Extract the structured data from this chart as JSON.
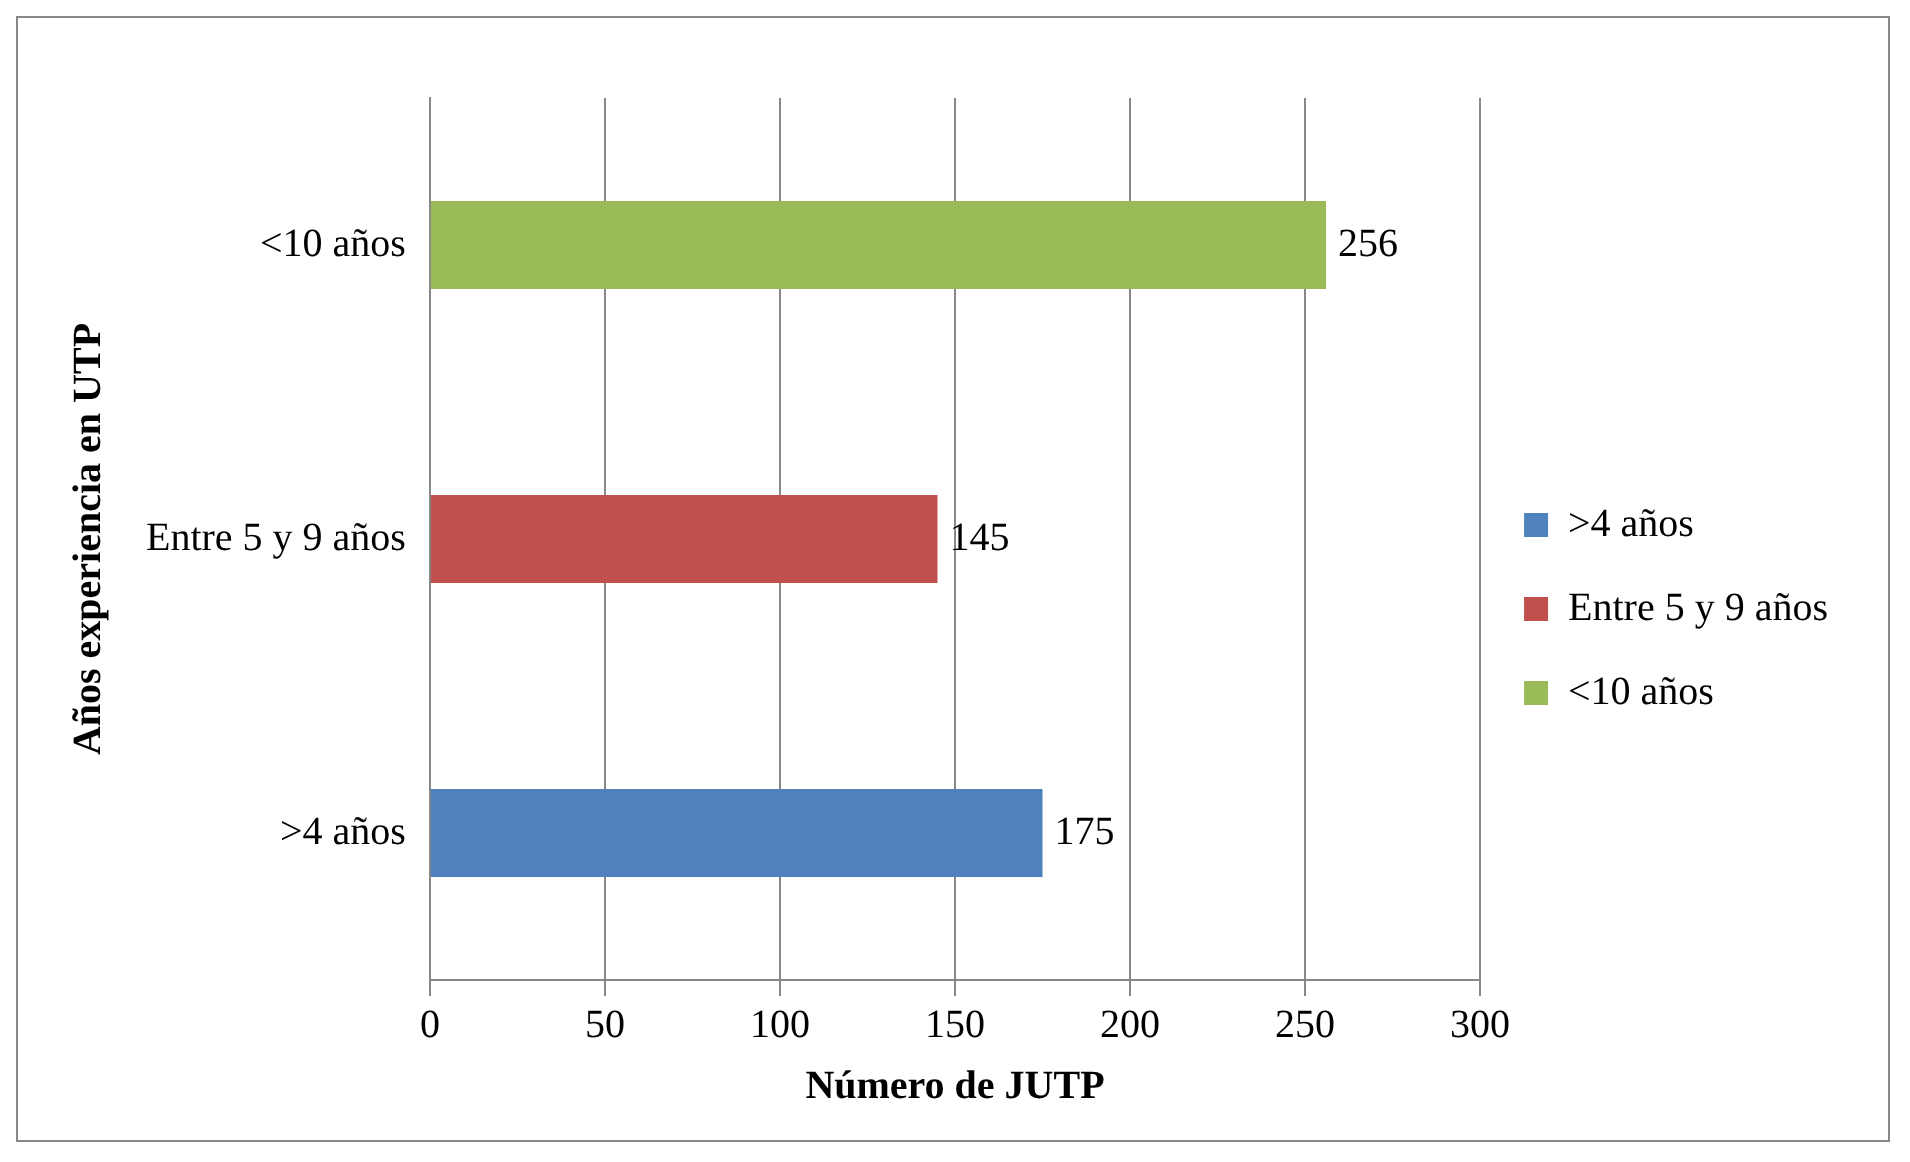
{
  "chart_data": {
    "type": "bar",
    "orientation": "horizontal",
    "xlabel": "Número de JUTP",
    "ylabel": "Años experiencia en UTP",
    "categories": [
      "<10 años",
      "Entre 5 y 9 años",
      ">4 años"
    ],
    "series": [
      {
        "name": ">4 años",
        "color": "#4f81bd",
        "values": [
          null,
          null,
          175
        ]
      },
      {
        "name": "Entre 5 y 9 años",
        "color": "#c0504d",
        "values": [
          null,
          145,
          null
        ]
      },
      {
        "name": "<10 años",
        "color": "#9bbb59",
        "values": [
          256,
          null,
          null
        ]
      }
    ],
    "xlim": [
      0,
      300
    ],
    "xticks": [
      0,
      50,
      100,
      150,
      200,
      250,
      300
    ],
    "grid": "x",
    "legend": "right",
    "data_labels": true
  }
}
